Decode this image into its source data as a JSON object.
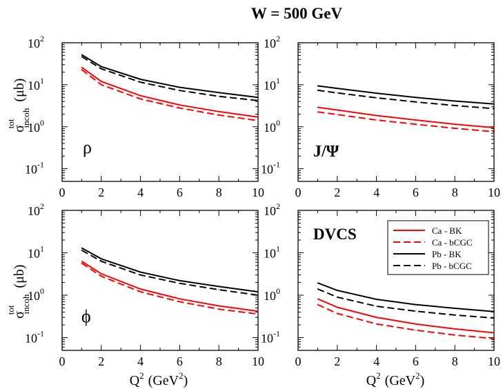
{
  "figure": {
    "title": "W = 500 GeV",
    "ylabel": {
      "base": "σ",
      "sup": "tot",
      "sub": "incoh",
      "unit": "(μb)"
    },
    "xlabel": {
      "base": "Q",
      "sup": "2",
      "unit_open": "(GeV",
      "unit_sup": "2",
      "unit_close": ")"
    }
  },
  "colors": {
    "ca": "#ff0000",
    "pb": "#000000",
    "axes": "#000000"
  },
  "legend": {
    "entries": [
      {
        "label": "Ca - BK",
        "color": "#ff0000",
        "dashed": false
      },
      {
        "label": "Ca - bCGC",
        "color": "#ff0000",
        "dashed": true
      },
      {
        "label": "Pb - BK",
        "color": "#000000",
        "dashed": false
      },
      {
        "label": "Pb - bCGC",
        "color": "#000000",
        "dashed": true
      }
    ]
  },
  "chart_data": [
    {
      "type": "line",
      "panel": "top-left",
      "annotation": "ρ",
      "x": [
        1,
        2,
        4,
        6,
        8,
        10
      ],
      "xlim": [
        0,
        10
      ],
      "ylim": [
        0.05,
        100
      ],
      "yscale": "log",
      "xticks": [
        "0",
        "2",
        "4",
        "6",
        "8",
        "10"
      ],
      "yticks": [
        {
          "mant": "10",
          "exp": "-1"
        },
        {
          "mant": "10",
          "exp": "0"
        },
        {
          "mant": "10",
          "exp": "1"
        },
        {
          "mant": "10",
          "exp": "2"
        }
      ],
      "series": [
        {
          "name": "Ca - BK",
          "values": [
            26,
            12,
            5.5,
            3.3,
            2.3,
            1.7
          ]
        },
        {
          "name": "Ca - bCGC",
          "values": [
            23,
            10,
            4.6,
            2.8,
            1.9,
            1.4
          ]
        },
        {
          "name": "Pb - BK",
          "values": [
            52,
            27,
            13.5,
            8.7,
            6.5,
            5.0
          ]
        },
        {
          "name": "Pb - bCGC",
          "values": [
            47,
            24,
            11.5,
            7.3,
            5.3,
            4.2
          ]
        }
      ]
    },
    {
      "type": "line",
      "panel": "top-right",
      "annotation": "J/Ψ",
      "x": [
        1,
        2,
        4,
        6,
        8,
        10
      ],
      "xlim": [
        0,
        10
      ],
      "ylim": [
        0.05,
        100
      ],
      "yscale": "log",
      "xticks": [
        "0",
        "2",
        "4",
        "6",
        "8",
        "10"
      ],
      "yticks": [
        {
          "mant": "10",
          "exp": "-1"
        },
        {
          "mant": "10",
          "exp": "0"
        },
        {
          "mant": "10",
          "exp": "1"
        },
        {
          "mant": "10",
          "exp": "2"
        }
      ],
      "series": [
        {
          "name": "Ca - BK",
          "values": [
            2.9,
            2.5,
            1.85,
            1.45,
            1.15,
            0.95
          ]
        },
        {
          "name": "Ca - bCGC",
          "values": [
            2.25,
            1.95,
            1.45,
            1.15,
            0.92,
            0.76
          ]
        },
        {
          "name": "Pb - BK",
          "values": [
            9.4,
            8.2,
            6.3,
            5.0,
            4.1,
            3.5
          ]
        },
        {
          "name": "Pb - bCGC",
          "values": [
            7.4,
            6.4,
            4.9,
            3.9,
            3.2,
            2.7
          ]
        }
      ]
    },
    {
      "type": "line",
      "panel": "bottom-left",
      "annotation": "ϕ",
      "x": [
        1,
        2,
        4,
        6,
        8,
        10
      ],
      "xlim": [
        0,
        10
      ],
      "ylim": [
        0.05,
        100
      ],
      "yscale": "log",
      "xticks": [
        "0",
        "2",
        "4",
        "6",
        "8",
        "10"
      ],
      "yticks": [
        {
          "mant": "10",
          "exp": "-1"
        },
        {
          "mant": "10",
          "exp": "0"
        },
        {
          "mant": "10",
          "exp": "1"
        },
        {
          "mant": "10",
          "exp": "2"
        }
      ],
      "series": [
        {
          "name": "Ca - BK",
          "values": [
            6.3,
            3.2,
            1.4,
            0.82,
            0.56,
            0.42
          ]
        },
        {
          "name": "Ca - bCGC",
          "values": [
            5.7,
            2.8,
            1.2,
            0.7,
            0.47,
            0.36
          ]
        },
        {
          "name": "Pb - BK",
          "values": [
            13,
            7.2,
            3.5,
            2.2,
            1.6,
            1.2
          ]
        },
        {
          "name": "Pb - bCGC",
          "values": [
            11.5,
            6.3,
            3.0,
            1.9,
            1.35,
            1.0
          ]
        }
      ]
    },
    {
      "type": "line",
      "panel": "bottom-right",
      "annotation": "DVCS",
      "x": [
        1,
        2,
        4,
        6,
        8,
        10
      ],
      "xlim": [
        0,
        10
      ],
      "ylim": [
        0.05,
        100
      ],
      "yscale": "log",
      "xticks": [
        "0",
        "2",
        "4",
        "6",
        "8",
        "10"
      ],
      "yticks": [
        {
          "mant": "10",
          "exp": "-1"
        },
        {
          "mant": "10",
          "exp": "0"
        },
        {
          "mant": "10",
          "exp": "1"
        },
        {
          "mant": "10",
          "exp": "2"
        }
      ],
      "series": [
        {
          "name": "Ca - BK",
          "values": [
            0.82,
            0.52,
            0.3,
            0.21,
            0.16,
            0.13
          ]
        },
        {
          "name": "Ca - bCGC",
          "values": [
            0.6,
            0.37,
            0.21,
            0.15,
            0.115,
            0.095
          ]
        },
        {
          "name": "Pb - BK",
          "values": [
            1.95,
            1.3,
            0.8,
            0.6,
            0.49,
            0.41
          ]
        },
        {
          "name": "Pb - bCGC",
          "values": [
            1.4,
            0.9,
            0.55,
            0.42,
            0.34,
            0.29
          ]
        }
      ]
    }
  ]
}
